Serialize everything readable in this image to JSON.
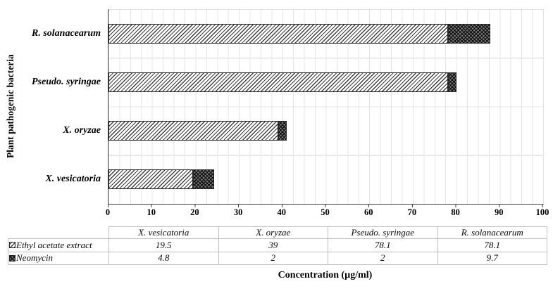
{
  "chart_data": {
    "type": "bar",
    "orientation": "horizontal",
    "stacked": true,
    "categories": [
      "X. vesicatoria",
      "X. oryzae",
      "Pseudo. syringae",
      "R. solanacearum"
    ],
    "category_order_top_to_bottom": [
      "R. solanacearum",
      "Pseudo. syringae",
      "X. oryzae",
      "X. vesicatoria"
    ],
    "series": [
      {
        "name": "Ethyl acetate extract",
        "pattern": "light-diagonal-hatch",
        "values": [
          19.5,
          39,
          78.1,
          78.1
        ]
      },
      {
        "name": "Neomycin",
        "pattern": "dark-crosshatch",
        "values": [
          4.8,
          2,
          2,
          9.7
        ]
      }
    ],
    "xlabel": "Concentration (µg/ml)",
    "ylabel": "Plant pathogenic bacteria",
    "xlim": [
      0,
      100
    ],
    "x_ticks": [
      0,
      10,
      20,
      30,
      40,
      50,
      60,
      70,
      80,
      90,
      100
    ],
    "x_minor_unit": 2.5,
    "grid": true,
    "legend_position": "table-left"
  },
  "table": {
    "corner_label": "",
    "columns": [
      "X. vesicatoria",
      "X. oryzae",
      "Pseudo. syringae",
      "R. solanacearum"
    ],
    "rows": [
      {
        "label": "Ethyl acetate extract",
        "swatch": "light-diagonal-hatch",
        "values": [
          "19.5",
          "39",
          "78.1",
          "78.1"
        ]
      },
      {
        "label": "Neomycin",
        "swatch": "dark-crosshatch",
        "values": [
          "4.8",
          "2",
          "2",
          "9.7"
        ]
      }
    ]
  },
  "colors": {
    "axis": "#3f3f3f",
    "gridline": "#e4e4e4",
    "hatch_foreground": "#2d2d2d",
    "neomycin_fill": "#787878",
    "bar_border": "#262626",
    "table_border": "#c0c0c0",
    "text": "#000000"
  }
}
